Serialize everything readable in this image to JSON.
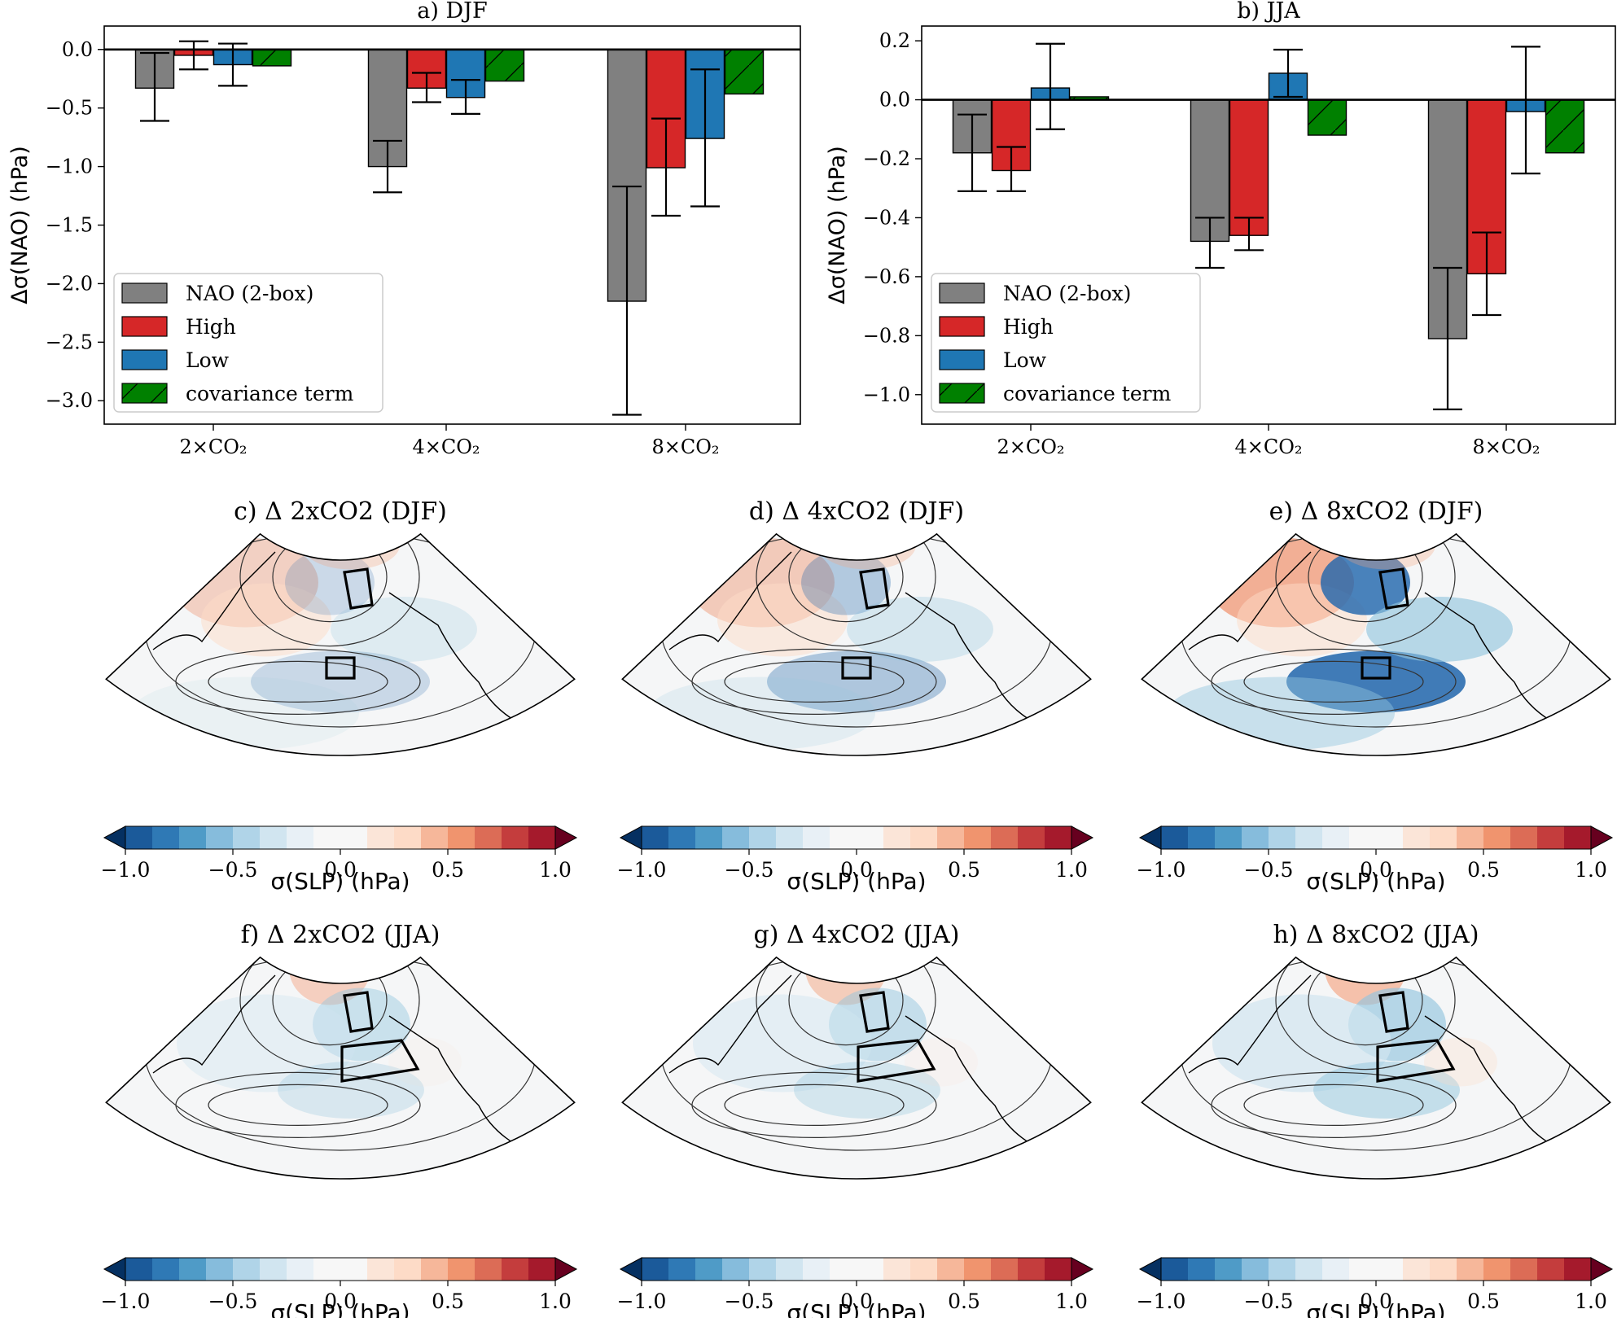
{
  "chart_data": [
    {
      "id": "a",
      "type": "bar",
      "title": "a) DJF",
      "ylabel": "Δσ(NAO) (hPa)",
      "xlabel": "",
      "ylim": [
        -3.2,
        0.2
      ],
      "yticks": [
        0.0,
        -0.5,
        -1.0,
        -1.5,
        -2.0,
        -2.5,
        -3.0
      ],
      "ytick_labels": [
        "0.0",
        "−0.5",
        "−1.0",
        "−1.5",
        "−2.0",
        "−2.5",
        "−3.0"
      ],
      "categories": [
        "2×CO₂",
        "4×CO₂",
        "8×CO₂"
      ],
      "series": [
        {
          "name": "NAO (2-box)",
          "color": "#808080",
          "hatch": false,
          "values": [
            -0.33,
            -1.0,
            -2.15
          ],
          "err_low": [
            -0.61,
            -1.22,
            -3.12
          ],
          "err_high": [
            -0.03,
            -0.78,
            -1.17
          ]
        },
        {
          "name": "High",
          "color": "#d62728",
          "hatch": false,
          "values": [
            -0.05,
            -0.33,
            -1.01
          ],
          "err_low": [
            -0.17,
            -0.45,
            -1.42
          ],
          "err_high": [
            0.07,
            -0.2,
            -0.59
          ]
        },
        {
          "name": "Low",
          "color": "#1f77b4",
          "hatch": false,
          "values": [
            -0.13,
            -0.41,
            -0.76
          ],
          "err_low": [
            -0.31,
            -0.55,
            -1.34
          ],
          "err_high": [
            0.05,
            -0.26,
            -0.17
          ]
        },
        {
          "name": "covariance term",
          "color": "#008000",
          "hatch": true,
          "values": [
            -0.14,
            -0.27,
            -0.38
          ],
          "err_low": null,
          "err_high": null
        }
      ],
      "legend": "lower-left"
    },
    {
      "id": "b",
      "type": "bar",
      "title": "b) JJA",
      "ylabel": "Δσ(NAO) (hPa)",
      "xlabel": "",
      "ylim": [
        -1.1,
        0.25
      ],
      "yticks": [
        0.2,
        0.0,
        -0.2,
        -0.4,
        -0.6,
        -0.8,
        -1.0
      ],
      "ytick_labels": [
        "0.2",
        "0.0",
        "−0.2",
        "−0.4",
        "−0.6",
        "−0.8",
        "−1.0"
      ],
      "categories": [
        "2×CO₂",
        "4×CO₂",
        "8×CO₂"
      ],
      "series": [
        {
          "name": "NAO (2-box)",
          "color": "#808080",
          "hatch": false,
          "values": [
            -0.18,
            -0.48,
            -0.81
          ],
          "err_low": [
            -0.31,
            -0.57,
            -1.05
          ],
          "err_high": [
            -0.05,
            -0.4,
            -0.57
          ]
        },
        {
          "name": "High",
          "color": "#d62728",
          "hatch": false,
          "values": [
            -0.24,
            -0.46,
            -0.59
          ],
          "err_low": [
            -0.31,
            -0.51,
            -0.73
          ],
          "err_high": [
            -0.16,
            -0.4,
            -0.45
          ]
        },
        {
          "name": "Low",
          "color": "#1f77b4",
          "hatch": false,
          "values": [
            0.04,
            0.09,
            -0.04
          ],
          "err_low": [
            -0.1,
            0.01,
            -0.25
          ],
          "err_high": [
            0.19,
            0.17,
            0.18
          ]
        },
        {
          "name": "covariance term",
          "color": "#008000",
          "hatch": true,
          "values": [
            0.01,
            -0.12,
            -0.18
          ],
          "err_low": null,
          "err_high": null
        }
      ],
      "legend": "lower-left"
    },
    {
      "id": "maps",
      "type": "heatmap",
      "colorbar_label": "σ(SLP) (hPa)",
      "colorbar_range": [
        -1.0,
        1.0
      ],
      "colorbar_ticks": [
        "−1.0",
        "−0.5",
        "0.0",
        "0.5",
        "1.0"
      ],
      "colormap": "RdBu_r",
      "panels": [
        {
          "title": "c) Δ 2xCO2 (DJF)",
          "season": "DJF",
          "scenario": "2xCO2",
          "intensity": 0.22
        },
        {
          "title": "d) Δ 4xCO2 (DJF)",
          "season": "DJF",
          "scenario": "4xCO2",
          "intensity": 0.35
        },
        {
          "title": "e) Δ 8xCO2 (DJF)",
          "season": "DJF",
          "scenario": "8xCO2",
          "intensity": 0.9
        },
        {
          "title": "f) Δ 2xCO2 (JJA)",
          "season": "JJA",
          "scenario": "2xCO2",
          "intensity": 0.15
        },
        {
          "title": "g) Δ 4xCO2 (JJA)",
          "season": "JJA",
          "scenario": "4xCO2",
          "intensity": 0.22
        },
        {
          "title": "h) Δ 8xCO2 (JJA)",
          "season": "JJA",
          "scenario": "8xCO2",
          "intensity": 0.5
        }
      ]
    }
  ]
}
